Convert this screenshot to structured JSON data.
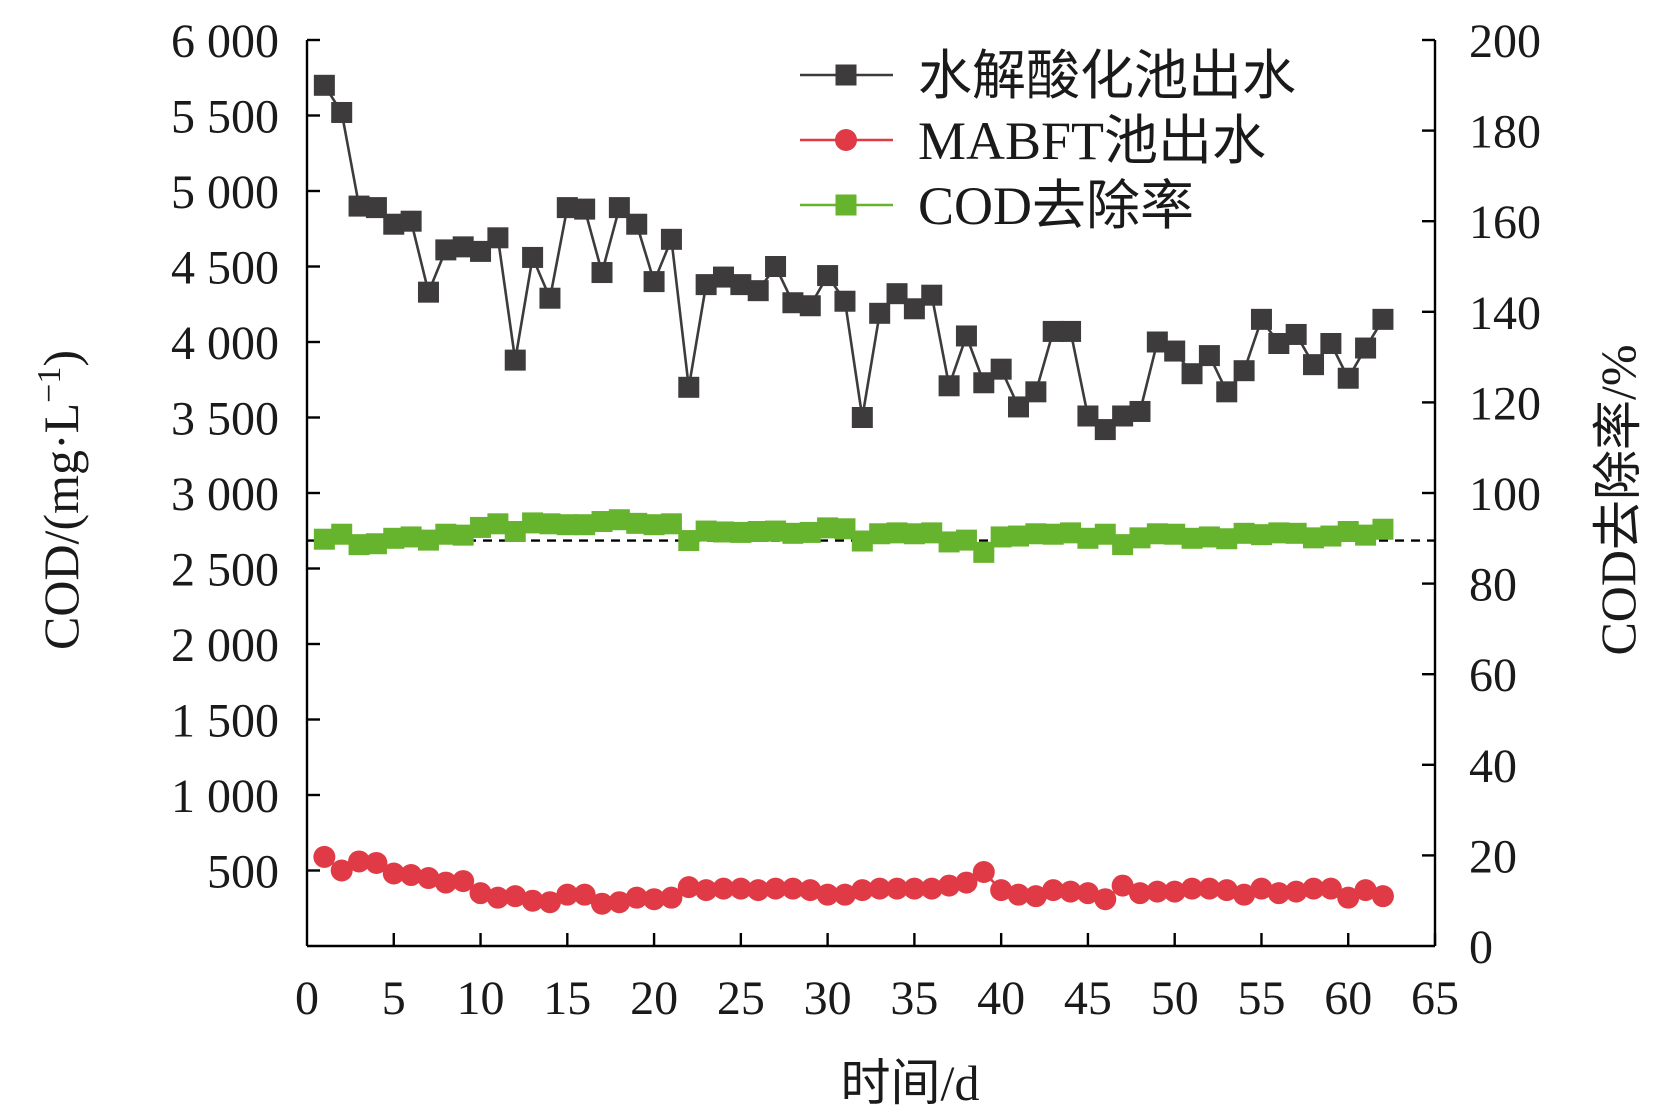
{
  "chart_data": {
    "type": "line",
    "xlabel": "时间/d",
    "ylabel_left": "COD/(mg·L",
    "ylabel_left_sup": "−1",
    "ylabel_left_close": ")",
    "ylabel_right": "COD去除率/%",
    "xlim": [
      0,
      65
    ],
    "ylim_left": [
      0,
      6000
    ],
    "ylim_right": [
      0,
      200
    ],
    "x_ticks": [
      0,
      5,
      10,
      15,
      20,
      25,
      30,
      35,
      40,
      45,
      50,
      55,
      60,
      65
    ],
    "x_tick_labels": [
      "0",
      "5",
      "10",
      "15",
      "20",
      "25",
      "30",
      "35",
      "40",
      "45",
      "50",
      "55",
      "60",
      "65"
    ],
    "y_left_ticks": [
      500,
      1000,
      1500,
      2000,
      2500,
      3000,
      3500,
      4000,
      4500,
      5000,
      5500,
      6000
    ],
    "y_left_tick_labels": [
      "500",
      "1 000",
      "1 500",
      "2 000",
      "2 500",
      "3 000",
      "3 500",
      "4 000",
      "4 500",
      "5 000",
      "5 500",
      "6 000"
    ],
    "y_right_ticks": [
      0,
      20,
      40,
      60,
      80,
      100,
      120,
      140,
      160,
      180,
      200
    ],
    "y_right_tick_labels": [
      "0",
      "20",
      "40",
      "60",
      "80",
      "100",
      "120",
      "140",
      "160",
      "180",
      "200"
    ],
    "reference_line": {
      "axis": "right",
      "value": 89.5,
      "style": "dashed"
    },
    "legend_position": "top-right",
    "grid": false,
    "x": [
      1,
      2,
      3,
      4,
      5,
      6,
      7,
      8,
      9,
      10,
      11,
      12,
      13,
      14,
      15,
      16,
      17,
      18,
      19,
      20,
      21,
      22,
      23,
      24,
      25,
      26,
      27,
      28,
      29,
      30,
      31,
      32,
      33,
      34,
      35,
      36,
      37,
      38,
      39,
      40,
      41,
      42,
      43,
      44,
      45,
      46,
      47,
      48,
      49,
      50,
      51,
      52,
      53,
      54,
      55,
      56,
      57,
      58,
      59,
      60,
      61,
      62
    ],
    "series": [
      {
        "name": "水解酸化池出水",
        "axis": "left",
        "marker": "square",
        "color": "#3d3b3b",
        "values": [
          5700,
          5520,
          4900,
          4890,
          4780,
          4800,
          4330,
          4610,
          4630,
          4600,
          4690,
          3880,
          4560,
          4290,
          4890,
          4880,
          4460,
          4890,
          4780,
          4400,
          4680,
          3700,
          4380,
          4430,
          4380,
          4340,
          4500,
          4260,
          4240,
          4440,
          4270,
          3500,
          4190,
          4320,
          4220,
          4310,
          3710,
          4040,
          3730,
          3820,
          3570,
          3670,
          4070,
          4070,
          3510,
          3420,
          3510,
          3540,
          4000,
          3940,
          3790,
          3910,
          3670,
          3810,
          4150,
          3990,
          4050,
          3850,
          3990,
          3760,
          3960,
          4150
        ]
      },
      {
        "name": "MABFT池出水",
        "axis": "left",
        "marker": "circle",
        "color": "#e03a46",
        "values": [
          590,
          500,
          560,
          550,
          480,
          470,
          450,
          420,
          430,
          350,
          320,
          330,
          300,
          290,
          340,
          340,
          280,
          290,
          320,
          310,
          320,
          390,
          370,
          380,
          380,
          370,
          380,
          380,
          370,
          340,
          340,
          370,
          380,
          380,
          380,
          380,
          400,
          420,
          490,
          370,
          340,
          330,
          370,
          360,
          350,
          310,
          400,
          350,
          360,
          360,
          380,
          380,
          370,
          340,
          380,
          350,
          360,
          380,
          380,
          320,
          370,
          330
        ]
      },
      {
        "name": "COD去除率",
        "axis": "right",
        "marker": "square",
        "color": "#66b32e",
        "values": [
          89.8,
          90.9,
          88.6,
          88.8,
          90.0,
          90.3,
          89.6,
          90.9,
          90.7,
          92.4,
          93.2,
          91.5,
          93.4,
          93.2,
          93.0,
          93.0,
          93.7,
          94.1,
          93.3,
          93.0,
          93.2,
          89.5,
          91.6,
          91.4,
          91.3,
          91.5,
          91.6,
          91.1,
          91.3,
          92.3,
          92.1,
          89.4,
          91.0,
          91.2,
          91.0,
          91.2,
          89.2,
          89.6,
          86.9,
          90.3,
          90.5,
          91.0,
          90.9,
          91.2,
          90.0,
          90.9,
          88.6,
          90.1,
          91.0,
          90.9,
          90.0,
          90.3,
          89.9,
          91.1,
          90.8,
          91.2,
          91.1,
          90.1,
          90.5,
          91.5,
          90.7,
          92.0
        ]
      }
    ]
  }
}
